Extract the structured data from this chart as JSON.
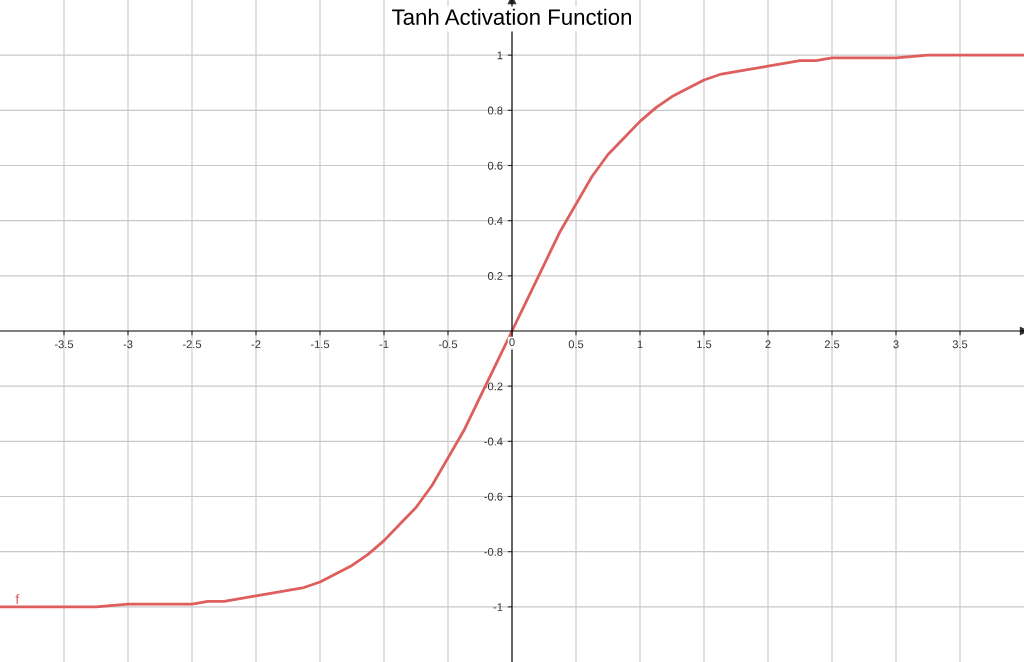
{
  "chart_data": {
    "type": "line",
    "title": "Tanh Activation Function",
    "x": [
      -4,
      -3.75,
      -3.5,
      -3.25,
      -3,
      -2.75,
      -2.5,
      -2.375,
      -2.25,
      -2.125,
      -2,
      -1.875,
      -1.75,
      -1.625,
      -1.5,
      -1.375,
      -1.25,
      -1.125,
      -1,
      -0.875,
      -0.75,
      -0.625,
      -0.5,
      -0.375,
      -0.25,
      -0.125,
      0,
      0.125,
      0.25,
      0.375,
      0.5,
      0.625,
      0.75,
      0.875,
      1,
      1.125,
      1.25,
      1.375,
      1.5,
      1.625,
      1.75,
      1.875,
      2,
      2.125,
      2.25,
      2.375,
      2.5,
      2.75,
      3,
      3.25,
      3.5,
      3.75,
      4
    ],
    "series": [
      {
        "color": "#de5e5e",
        "values": [
          -1.0,
          -1.0,
          -1.0,
          -1.0,
          -0.99,
          -0.99,
          -0.99,
          -0.98,
          -0.98,
          -0.97,
          -0.96,
          -0.95,
          -0.94,
          -0.93,
          -0.91,
          -0.88,
          -0.85,
          -0.81,
          -0.76,
          -0.7,
          -0.64,
          -0.56,
          -0.46,
          -0.36,
          -0.24,
          -0.12,
          0,
          0.12,
          0.24,
          0.36,
          0.46,
          0.56,
          0.64,
          0.7,
          0.76,
          0.81,
          0.85,
          0.88,
          0.91,
          0.93,
          0.94,
          0.95,
          0.96,
          0.97,
          0.98,
          0.98,
          0.99,
          0.99,
          0.99,
          1.0,
          1.0,
          1.0,
          1.0
        ]
      }
    ],
    "xlim": [
      -4,
      4
    ],
    "ylim": [
      -1.2,
      1.2
    ],
    "xticks": [
      -3.5,
      -3,
      -2.5,
      -2,
      -1.5,
      -1,
      -0.5,
      0,
      0.5,
      1,
      1.5,
      2,
      2.5,
      3,
      3.5
    ],
    "yticks": [
      -1,
      -0.8,
      -0.6,
      -0.4,
      -0.2,
      0.2,
      0.4,
      0.6,
      0.8,
      1
    ],
    "annotations": [
      {
        "text": "f",
        "x": -3.85,
        "y": -1.0
      }
    ],
    "grid": true,
    "line_style": "solid",
    "marker": "none"
  }
}
